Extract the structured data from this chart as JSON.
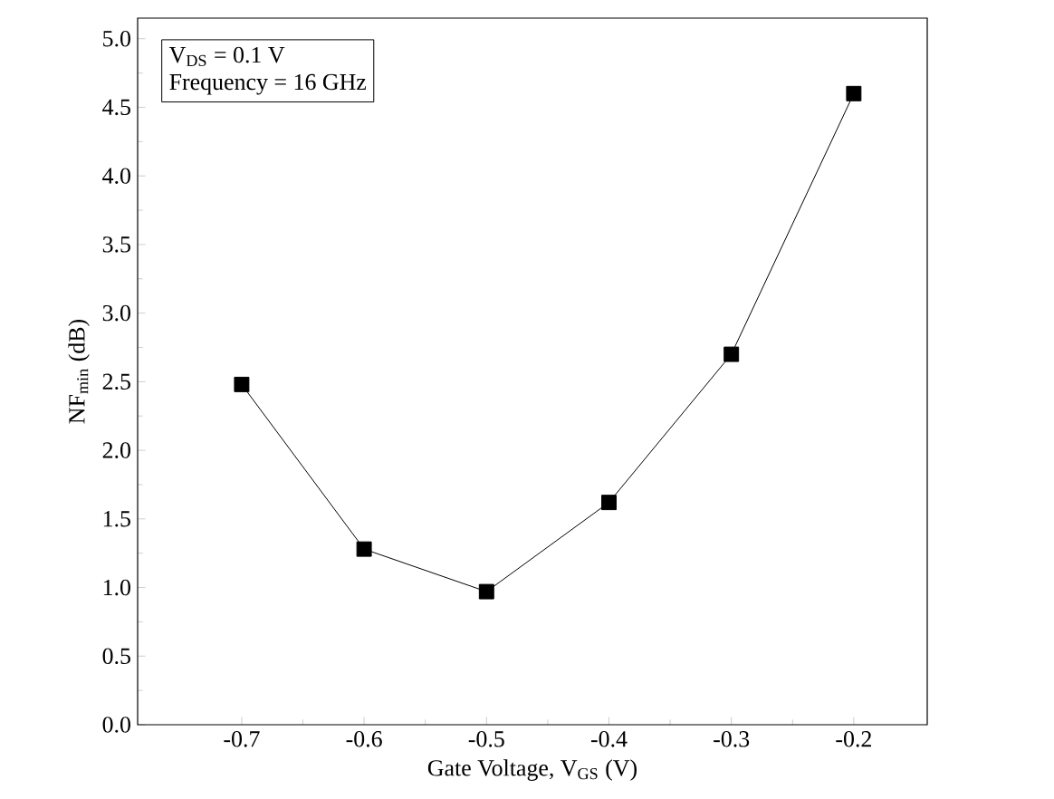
{
  "chart_data": {
    "type": "line",
    "xlabel": "Gate Voltage, V$_{GS}$ (V)",
    "ylabel": "NF$_{min}$ (dB)",
    "annotations": [
      "V$_{DS}$ = 0.1 V",
      "Frequency = 16 GHz"
    ],
    "x": [
      -0.7,
      -0.6,
      -0.5,
      -0.4,
      -0.3,
      -0.2
    ],
    "series": [
      {
        "color": "#000000",
        "values": [
          2.48,
          1.28,
          0.97,
          1.62,
          2.7,
          4.6
        ]
      }
    ],
    "xlim": [
      -0.785,
      -0.14
    ],
    "ylim": [
      0,
      5.15
    ],
    "xticks": [
      -0.7,
      -0.6,
      -0.5,
      -0.4,
      -0.3,
      -0.2
    ],
    "yticks": [
      {
        "value": 0,
        "label": "0.0"
      },
      {
        "value": 0.5,
        "label": "0.5"
      },
      {
        "value": 1,
        "label": "1.0"
      },
      {
        "value": 1.5,
        "label": "1.5"
      },
      {
        "value": 2,
        "label": "2.0"
      },
      {
        "value": 2.5,
        "label": "2.5"
      },
      {
        "value": 3,
        "label": "3.0"
      },
      {
        "value": 3.5,
        "label": "3.5"
      },
      {
        "value": 4,
        "label": "4.0"
      },
      {
        "value": 4.5,
        "label": "4.5"
      },
      {
        "value": 5,
        "label": "5.0"
      }
    ],
    "marker": "square",
    "line_style": "solid"
  }
}
